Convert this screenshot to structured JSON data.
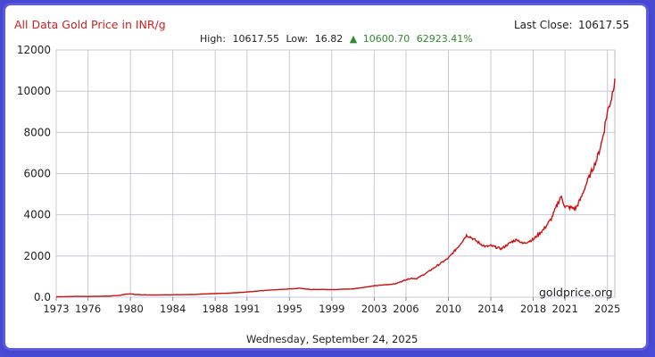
{
  "chart_data": {
    "type": "line",
    "title": "All Data Gold Price in INR/g",
    "stats": {
      "high_label": "High:",
      "high": "10617.55",
      "low_label": "Low:",
      "low": "16.82",
      "change_arrow": "▲",
      "change": "10600.70",
      "change_pct": "62923.41%"
    },
    "last_close_label": "Last Close:",
    "last_close": "10617.55",
    "date_text": "Wednesday, September 24, 2025",
    "watermark": "goldprice.org",
    "xlim": [
      1973,
      2025.7
    ],
    "ylim": [
      0,
      12000
    ],
    "x_ticks": [
      1973,
      1976,
      1980,
      1984,
      1988,
      1991,
      1995,
      1999,
      2003,
      2006,
      2010,
      2014,
      2018,
      2021,
      2025
    ],
    "y_ticks": [
      0,
      2000,
      4000,
      6000,
      8000,
      10000,
      12000
    ],
    "y_tick_labels": [
      "0.0",
      "2000",
      "4000",
      "6000",
      "8000",
      "10000",
      "12000"
    ],
    "grid": true,
    "colors": {
      "line": "#cc1111",
      "title": "#cc2222",
      "change": "#2e8b2e",
      "grid": "#c8c8d8"
    },
    "series": [
      {
        "x": [
          1973,
          1974,
          1975,
          1976,
          1977,
          1978,
          1979,
          1979.6,
          1980.0,
          1980.5,
          1981,
          1982,
          1983,
          1984,
          1985,
          1986,
          1987,
          1988,
          1989,
          1990,
          1991,
          1992,
          1993,
          1994,
          1995,
          1996,
          1997,
          1998,
          1999,
          2000,
          2001,
          2002,
          2003,
          2004,
          2005,
          2006,
          2006.5,
          2007,
          2008,
          2009,
          2010,
          2011,
          2011.7,
          2012,
          2013,
          2013.5,
          2014,
          2015,
          2016,
          2016.5,
          2017,
          2018,
          2019,
          2019.7,
          2020.6,
          2021,
          2022,
          2022.5,
          2023,
          2024,
          2024.5,
          2025,
          2025.4,
          2025.7
        ],
        "y": [
          20,
          30,
          40,
          35,
          45,
          55,
          90,
          150,
          160,
          130,
          120,
          110,
          115,
          120,
          120,
          130,
          160,
          180,
          190,
          220,
          250,
          300,
          340,
          370,
          400,
          440,
          370,
          380,
          370,
          390,
          400,
          480,
          550,
          600,
          650,
          850,
          920,
          900,
          1200,
          1550,
          1900,
          2500,
          3000,
          2950,
          2600,
          2450,
          2500,
          2350,
          2700,
          2800,
          2600,
          2800,
          3300,
          3800,
          4900,
          4400,
          4300,
          4800,
          5500,
          6700,
          7600,
          9000,
          9700,
          10617
        ]
      }
    ]
  }
}
